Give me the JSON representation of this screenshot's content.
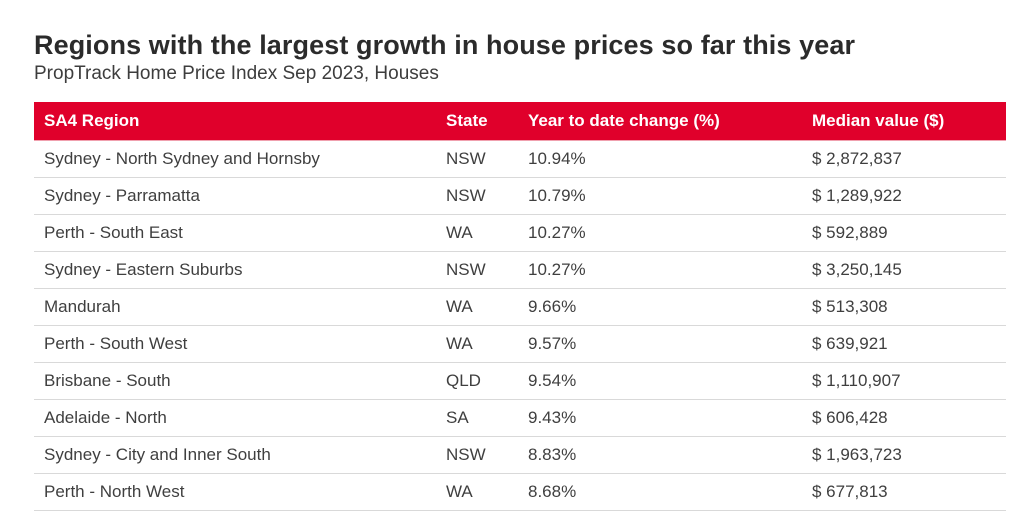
{
  "header": {
    "title": "Regions with the largest growth in house prices so far this year",
    "subtitle": "PropTrack Home Price Index Sep 2023, Houses"
  },
  "colors": {
    "header_bg": "#e0002b",
    "header_text": "#ffffff",
    "title_text": "#2b2b2b",
    "row_divider": "#d9d9d9"
  },
  "table": {
    "columns": [
      "SA4 Region",
      "State",
      "Year to date change (%)",
      "Median value ($)"
    ],
    "rows": [
      {
        "region": "Sydney - North Sydney and Hornsby",
        "state": "NSW",
        "ytd_change": "10.94%",
        "median": "$ 2,872,837"
      },
      {
        "region": "Sydney - Parramatta",
        "state": "NSW",
        "ytd_change": "10.79%",
        "median": "$ 1,289,922"
      },
      {
        "region": "Perth - South East",
        "state": "WA",
        "ytd_change": "10.27%",
        "median": "$ 592,889"
      },
      {
        "region": "Sydney - Eastern Suburbs",
        "state": "NSW",
        "ytd_change": "10.27%",
        "median": "$ 3,250,145"
      },
      {
        "region": "Mandurah",
        "state": "WA",
        "ytd_change": "9.66%",
        "median": "$ 513,308"
      },
      {
        "region": "Perth - South West",
        "state": "WA",
        "ytd_change": "9.57%",
        "median": "$ 639,921"
      },
      {
        "region": "Brisbane - South",
        "state": "QLD",
        "ytd_change": "9.54%",
        "median": "$ 1,110,907"
      },
      {
        "region": "Adelaide - North",
        "state": "SA",
        "ytd_change": "9.43%",
        "median": "$ 606,428"
      },
      {
        "region": "Sydney - City and Inner South",
        "state": "NSW",
        "ytd_change": "8.83%",
        "median": "$ 1,963,723"
      },
      {
        "region": "Perth - North West",
        "state": "WA",
        "ytd_change": "8.68%",
        "median": "$ 677,813"
      }
    ]
  }
}
